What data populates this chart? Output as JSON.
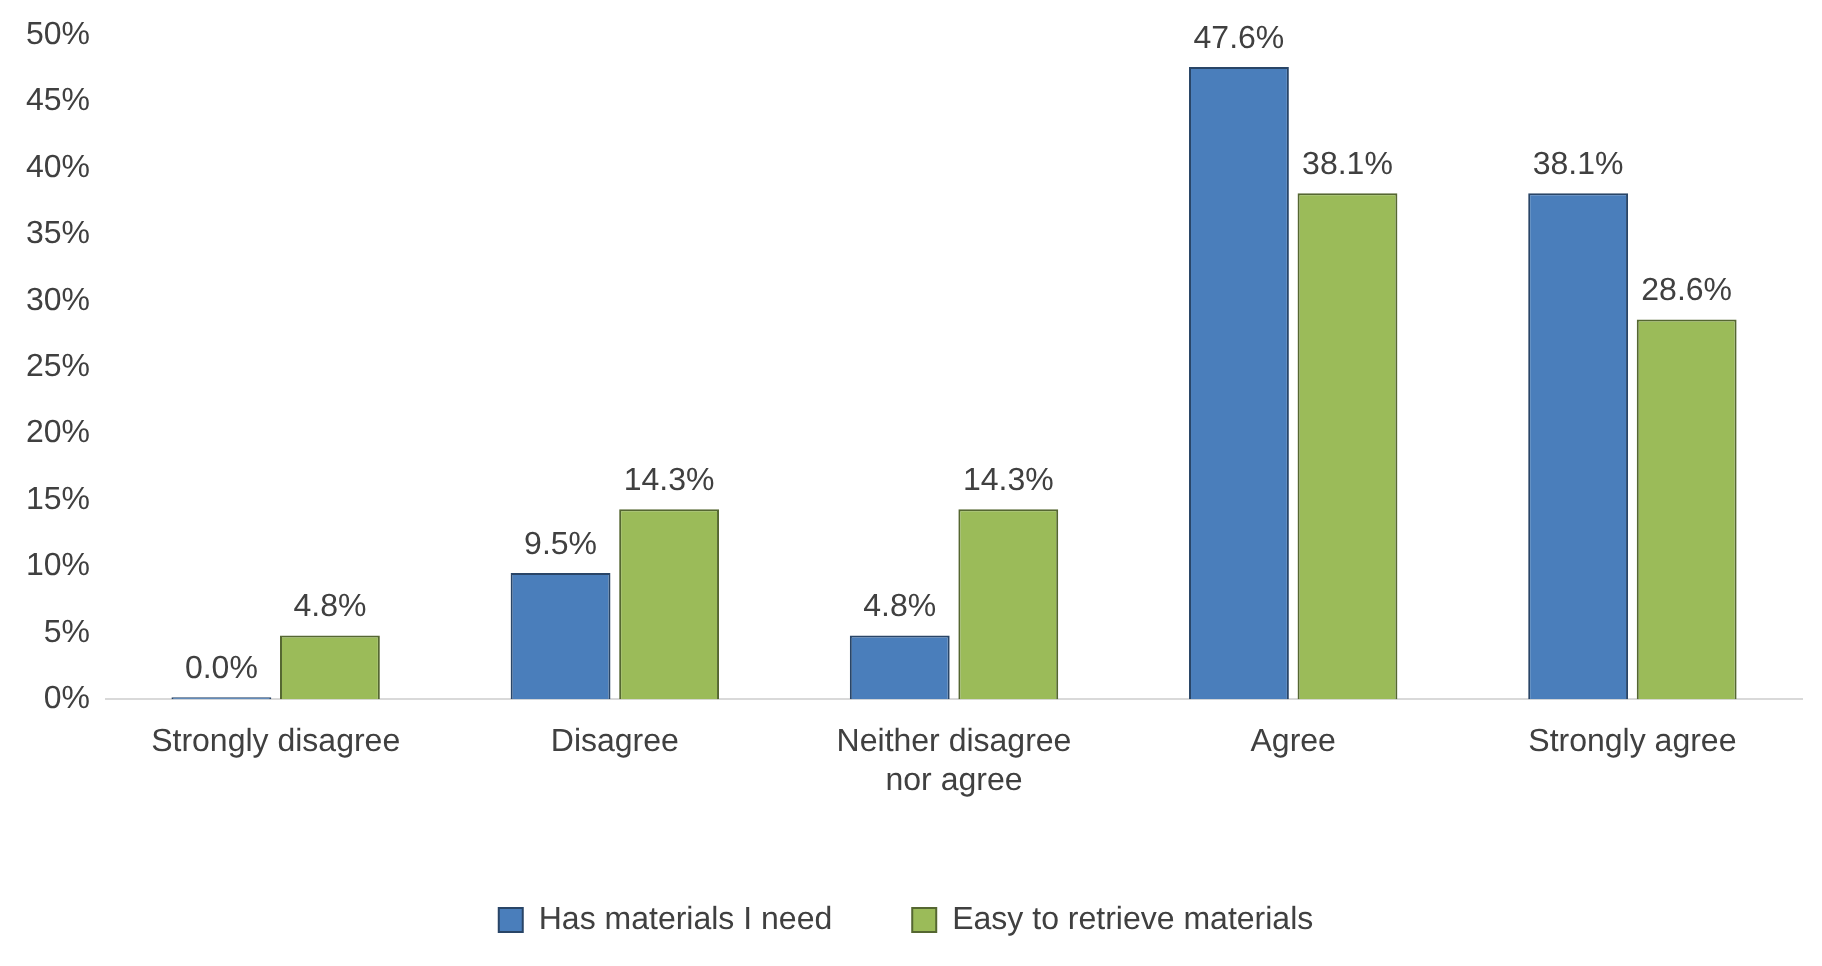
{
  "chart_data": {
    "type": "bar",
    "categories": [
      "Strongly disagree",
      "Disagree",
      "Neither disagree nor agree",
      "Agree",
      "Strongly agree"
    ],
    "series": [
      {
        "name": "Has materials I need",
        "color": "#4a7ebb",
        "values": [
          0.0,
          9.5,
          4.8,
          47.6,
          38.1
        ],
        "value_labels": [
          "0.0%",
          "9.5%",
          "4.8%",
          "47.6%",
          "38.1%"
        ]
      },
      {
        "name": "Easy to retrieve materials",
        "color": "#9bbb59",
        "values": [
          4.8,
          14.3,
          14.3,
          38.1,
          28.6
        ],
        "value_labels": [
          "4.8%",
          "14.3%",
          "14.3%",
          "38.1%",
          "28.6%"
        ]
      }
    ],
    "ylim": [
      0,
      50
    ],
    "yticks": [
      {
        "value": 0,
        "label": "0%"
      },
      {
        "value": 5,
        "label": "5%"
      },
      {
        "value": 10,
        "label": "10%"
      },
      {
        "value": 15,
        "label": "15%"
      },
      {
        "value": 20,
        "label": "20%"
      },
      {
        "value": 25,
        "label": "25%"
      },
      {
        "value": 30,
        "label": "30%"
      },
      {
        "value": 35,
        "label": "35%"
      },
      {
        "value": 40,
        "label": "40%"
      },
      {
        "value": 45,
        "label": "45%"
      },
      {
        "value": 50,
        "label": "50%"
      }
    ],
    "grid": false,
    "legend": "bottom"
  }
}
